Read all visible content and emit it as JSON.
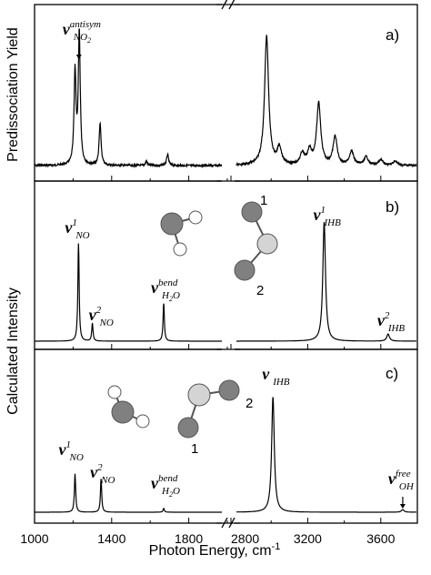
{
  "chart_data": {
    "type": "line",
    "x_axis": {
      "label": "Photon Energy, cm",
      "label_sup": "-1",
      "broken": true,
      "left_segment": {
        "range": [
          1000,
          2000
        ],
        "ticks": [
          1000,
          1400,
          1800
        ]
      },
      "right_segment": {
        "range": [
          2800,
          3800
        ],
        "ticks": [
          2800,
          3200,
          3600
        ]
      }
    },
    "ylabels": {
      "top": "Predissociation Yield",
      "bottom": "Calculated Intensity"
    },
    "panels": [
      {
        "id": "a",
        "tag": "a)",
        "peaks": [
          {
            "x": 1210,
            "h": 0.66
          },
          {
            "x": 1232,
            "h": 0.94
          },
          {
            "x": 1340,
            "h": 0.3
          },
          {
            "x": 1580,
            "h": 0.03
          },
          {
            "x": 1690,
            "h": 0.08
          },
          {
            "x": 2975,
            "h": 0.92
          },
          {
            "x": 3045,
            "h": 0.12
          },
          {
            "x": 3170,
            "h": 0.08
          },
          {
            "x": 3210,
            "h": 0.1
          },
          {
            "x": 3260,
            "h": 0.44
          },
          {
            "x": 3350,
            "h": 0.2
          },
          {
            "x": 3440,
            "h": 0.1
          },
          {
            "x": 3520,
            "h": 0.06
          },
          {
            "x": 3600,
            "h": 0.04
          },
          {
            "x": 3680,
            "h": 0.03
          }
        ],
        "labels": [
          {
            "main": "ν",
            "sub": "NO",
            "sub2": "2",
            "sup": "antisym",
            "x": 1230,
            "arrow": true
          }
        ]
      },
      {
        "id": "b",
        "tag": "b)",
        "peaks": [
          {
            "x": 1228,
            "h": 0.82
          },
          {
            "x": 1300,
            "h": 0.15
          },
          {
            "x": 1670,
            "h": 0.32
          },
          {
            "x": 3290,
            "h": 1.0
          },
          {
            "x": 3640,
            "h": 0.06
          }
        ],
        "labels": [
          {
            "main": "ν",
            "sub": "NO",
            "sup": "1",
            "x": 1228
          },
          {
            "main": "ν",
            "sub": "NO",
            "sup": "2",
            "x": 1300
          },
          {
            "main": "ν",
            "sub": "H",
            "sub2": "2",
            "sub3": "O",
            "sup": "bend",
            "x": 1670
          },
          {
            "main": "ν",
            "sub": "IHB",
            "sup": "1",
            "x": 3290
          },
          {
            "main": "ν",
            "sub": "IHB",
            "sup": "2",
            "x": 3640
          }
        ],
        "atom_labels": [
          "1",
          "2"
        ]
      },
      {
        "id": "c",
        "tag": "c)",
        "peaks": [
          {
            "x": 1210,
            "h": 0.3
          },
          {
            "x": 1345,
            "h": 0.26
          },
          {
            "x": 1670,
            "h": 0.03
          },
          {
            "x": 3010,
            "h": 0.9
          },
          {
            "x": 3720,
            "h": 0.02
          }
        ],
        "labels": [
          {
            "main": "ν",
            "sub": "NO",
            "sup": "1",
            "x": 1210
          },
          {
            "main": "ν",
            "sub": "NO",
            "sup": "2",
            "x": 1345
          },
          {
            "main": "ν",
            "sub": "H",
            "sub2": "2",
            "sub3": "O",
            "sup": "bend",
            "x": 1670
          },
          {
            "main": "ν",
            "sub": "IHB",
            "x": 3010
          },
          {
            "main": "ν",
            "sub": "OH",
            "sup": "free",
            "x": 3720,
            "arrow": true
          }
        ],
        "atom_labels": [
          "2",
          "1"
        ]
      }
    ],
    "grid": false,
    "legend": "none"
  }
}
